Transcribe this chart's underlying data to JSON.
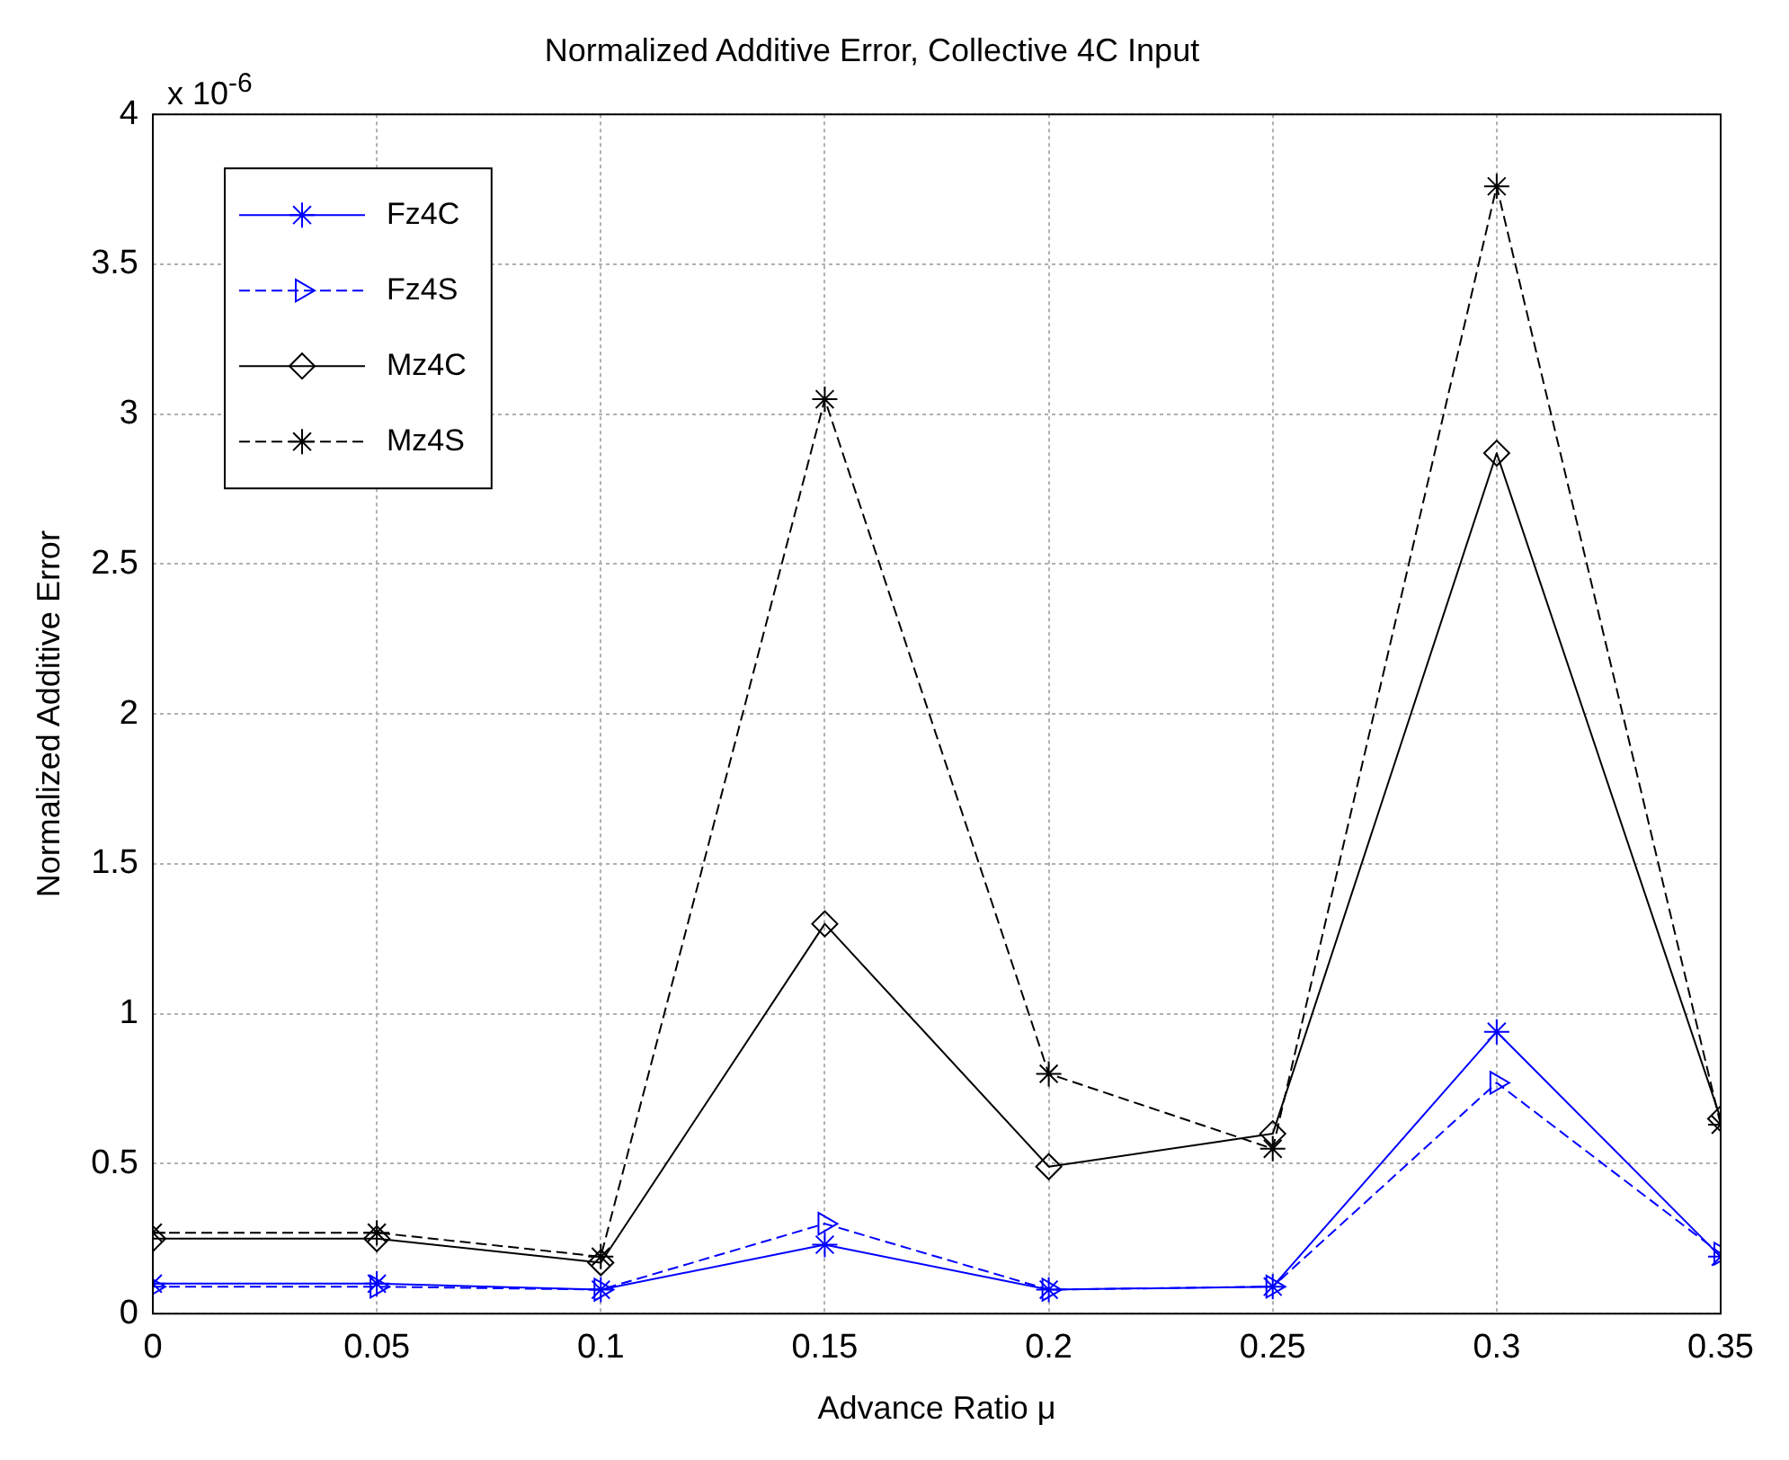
{
  "chart_data": {
    "type": "line",
    "title": "Normalized Additive Error, Collective 4C Input",
    "xlabel": "Advance Ratio μ",
    "ylabel": "Normalized Additive Error",
    "annotations": [
      "x 10$^{-6}$"
    ],
    "x": [
      0,
      0.05,
      0.1,
      0.15,
      0.2,
      0.25,
      0.3,
      0.35
    ],
    "series": [
      {
        "name": "Fz4C",
        "color": "#0000ff",
        "marker": "cross",
        "line_style": "solid",
        "values": [
          0.1,
          0.1,
          0.08,
          0.23,
          0.08,
          0.09,
          0.94,
          0.19
        ]
      },
      {
        "name": "Fz4S",
        "color": "#0000ff",
        "marker": "triangle",
        "line_style": "dashed",
        "values": [
          0.09,
          0.09,
          0.08,
          0.3,
          0.08,
          0.09,
          0.77,
          0.2
        ]
      },
      {
        "name": "Mz4C",
        "color": "#000000",
        "marker": "diamond",
        "line_style": "solid",
        "values": [
          0.25,
          0.25,
          0.17,
          1.3,
          0.49,
          0.6,
          2.87,
          0.65
        ]
      },
      {
        "name": "Mz4S",
        "color": "#000000",
        "marker": "cross",
        "line_style": "dashed",
        "values": [
          0.27,
          0.27,
          0.19,
          3.05,
          0.8,
          0.55,
          3.76,
          0.63
        ]
      }
    ],
    "xlim": [
      0,
      0.35
    ],
    "xticks": [
      0,
      0.05,
      0.1,
      0.15,
      0.2,
      0.25,
      0.3,
      0.35
    ],
    "ylim": [
      0,
      4
    ],
    "yticks": [
      0,
      0.5,
      1,
      1.5,
      2,
      2.5,
      3,
      3.5,
      4
    ],
    "grid": true,
    "legend": "top left"
  }
}
